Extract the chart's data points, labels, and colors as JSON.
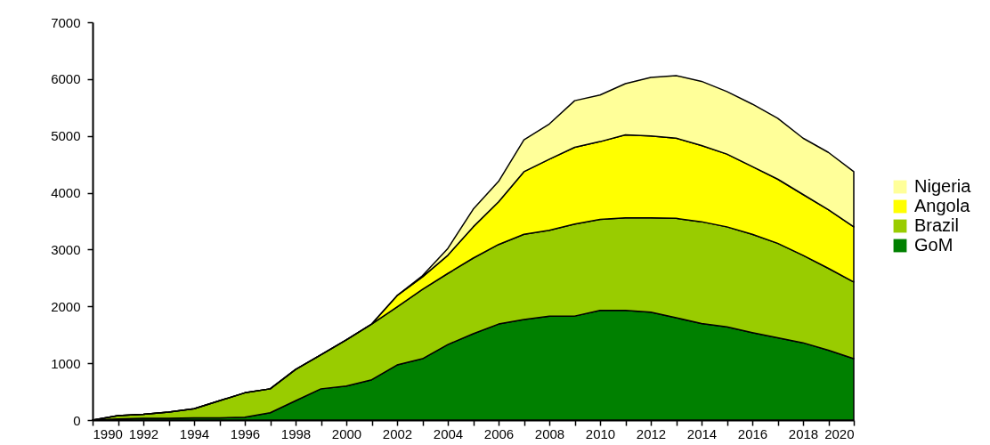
{
  "chart_data": {
    "type": "area",
    "stacked": true,
    "x": [
      1990,
      1991,
      1992,
      1993,
      1994,
      1995,
      1996,
      1997,
      1998,
      1999,
      2000,
      2001,
      2002,
      2003,
      2004,
      2005,
      2006,
      2007,
      2008,
      2009,
      2010,
      2011,
      2012,
      2013,
      2014,
      2015,
      2016,
      2017,
      2018,
      2019,
      2020
    ],
    "series": [
      {
        "name": "GoM",
        "color": "#008000",
        "values": [
          0,
          20,
          30,
          30,
          40,
          40,
          50,
          130,
          340,
          550,
          600,
          710,
          970,
          1080,
          1330,
          1520,
          1690,
          1770,
          1830,
          1830,
          1930,
          1930,
          1900,
          1800,
          1700,
          1640,
          1540,
          1450,
          1360,
          1230,
          1080
        ]
      },
      {
        "name": "Brazil",
        "color": "#99cc00",
        "values": [
          0,
          60,
          70,
          110,
          160,
          300,
          430,
          420,
          550,
          600,
          810,
          980,
          1020,
          1220,
          1250,
          1330,
          1400,
          1500,
          1510,
          1620,
          1600,
          1630,
          1660,
          1750,
          1790,
          1760,
          1730,
          1660,
          1540,
          1440,
          1350
        ]
      },
      {
        "name": "Angola",
        "color": "#ffff00",
        "values": [
          0,
          0,
          0,
          0,
          0,
          0,
          0,
          0,
          0,
          0,
          0,
          0,
          200,
          220,
          320,
          550,
          750,
          1100,
          1250,
          1350,
          1370,
          1460,
          1440,
          1410,
          1340,
          1280,
          1190,
          1130,
          1070,
          1030,
          970
        ]
      },
      {
        "name": "Nigeria",
        "color": "#ffff99",
        "values": [
          0,
          0,
          0,
          0,
          0,
          0,
          0,
          0,
          0,
          0,
          0,
          0,
          0,
          20,
          120,
          310,
          360,
          560,
          620,
          820,
          820,
          900,
          1030,
          1100,
          1130,
          1100,
          1100,
          1070,
          990,
          1010,
          970
        ]
      }
    ],
    "xlim": [
      1990,
      2020
    ],
    "xticks": [
      1990,
      {
        "value": 1991,
        "label": null
      },
      1992,
      {
        "value": 1993,
        "label": null
      },
      1994,
      {
        "value": 1995,
        "label": null
      },
      1996,
      {
        "value": 1997,
        "label": null
      },
      1998,
      {
        "value": 1999,
        "label": null
      },
      2000,
      {
        "value": 2001,
        "label": null
      },
      2002,
      {
        "value": 2003,
        "label": null
      },
      2004,
      {
        "value": 2005,
        "label": null
      },
      2006,
      {
        "value": 2007,
        "label": null
      },
      2008,
      {
        "value": 2009,
        "label": null
      },
      2010,
      {
        "value": 2011,
        "label": null
      },
      2012,
      {
        "value": 2013,
        "label": null
      },
      2014,
      {
        "value": 2015,
        "label": null
      },
      2016,
      {
        "value": 2017,
        "label": null
      },
      2018,
      {
        "value": 2019,
        "label": null
      },
      2020
    ],
    "ylim": [
      0,
      7000
    ],
    "yticks": [
      0,
      1000,
      2000,
      3000,
      4000,
      5000,
      6000,
      7000
    ],
    "legend": "right"
  }
}
